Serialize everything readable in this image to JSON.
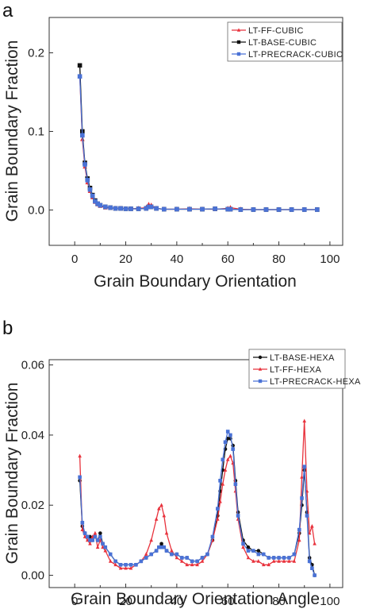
{
  "chart_data": [
    {
      "panel_label": "a",
      "type": "line",
      "xlabel": "Grain Boundary Orientation",
      "ylabel": "Grain Boundary Fraction",
      "xlim": [
        -10,
        105
      ],
      "ylim": [
        -0.045,
        0.245
      ],
      "xticks": [
        0,
        20,
        40,
        60,
        80,
        100
      ],
      "xtick_labels": [
        "0",
        "20",
        "40",
        "60",
        "80",
        "100"
      ],
      "yticks": [
        0.0,
        0.1,
        0.2
      ],
      "ytick_labels": [
        "0.0",
        "0.1",
        "0.2"
      ],
      "grid": false,
      "legend_position": "top-right",
      "series": [
        {
          "name": "LT-FF-CUBIC",
          "color": "#e8323c",
          "marker": "triangle",
          "x": [
            2,
            3,
            4,
            5,
            6,
            7,
            8,
            9,
            10,
            12,
            14,
            16,
            18,
            20,
            22,
            25,
            28,
            29,
            30,
            32,
            35,
            40,
            45,
            50,
            55,
            60,
            61,
            65,
            70,
            75,
            80,
            85,
            90,
            95
          ],
          "y": [
            0.17,
            0.09,
            0.055,
            0.035,
            0.024,
            0.016,
            0.01,
            0.007,
            0.005,
            0.003,
            0.0025,
            0.002,
            0.002,
            0.0015,
            0.0015,
            0.002,
            0.003,
            0.007,
            0.006,
            0.002,
            0.001,
            0.001,
            0.0015,
            0.001,
            0.001,
            0.002,
            0.003,
            0.001,
            0.0005,
            0.0005,
            0.0005,
            0.0005,
            0.0005,
            0.0005
          ]
        },
        {
          "name": "LT-BASE-CUBIC",
          "color": "#111111",
          "marker": "square",
          "x": [
            2,
            3,
            4,
            5,
            6,
            7,
            8,
            9,
            10,
            12,
            14,
            16,
            18,
            20,
            22,
            25,
            28,
            29,
            30,
            32,
            35,
            40,
            45,
            50,
            55,
            60,
            61,
            65,
            70,
            75,
            80,
            85,
            90,
            95
          ],
          "y": [
            0.184,
            0.1,
            0.06,
            0.04,
            0.028,
            0.019,
            0.012,
            0.008,
            0.006,
            0.004,
            0.003,
            0.002,
            0.002,
            0.0015,
            0.0015,
            0.0015,
            0.002,
            0.004,
            0.004,
            0.002,
            0.001,
            0.001,
            0.001,
            0.001,
            0.0015,
            0.001,
            0.001,
            0.0005,
            0.0005,
            0.0005,
            0.0005,
            0.0005,
            0.0005,
            0.0005
          ]
        },
        {
          "name": "LT-PRECRACK-CUBIC",
          "color": "#4a72d6",
          "marker": "square",
          "x": [
            2,
            3,
            4,
            5,
            6,
            7,
            8,
            9,
            10,
            12,
            14,
            16,
            18,
            20,
            22,
            25,
            28,
            29,
            30,
            32,
            35,
            40,
            45,
            50,
            55,
            60,
            61,
            65,
            70,
            75,
            80,
            85,
            90,
            95
          ],
          "y": [
            0.17,
            0.095,
            0.058,
            0.038,
            0.026,
            0.018,
            0.011,
            0.008,
            0.006,
            0.004,
            0.003,
            0.002,
            0.002,
            0.0015,
            0.0015,
            0.0015,
            0.002,
            0.004,
            0.004,
            0.002,
            0.001,
            0.001,
            0.001,
            0.001,
            0.0015,
            0.001,
            0.001,
            0.0005,
            0.0005,
            0.0005,
            0.0005,
            0.0005,
            0.0005,
            0.0005
          ]
        }
      ]
    },
    {
      "panel_label": "b",
      "type": "line",
      "xlabel": "Grain Boundary Orientation Angle",
      "ylabel": "Grain Boundary Fraction",
      "xlim": [
        -10,
        105
      ],
      "ylim": [
        -0.0035,
        0.0615
      ],
      "xticks": [
        0,
        20,
        40,
        60,
        80,
        100
      ],
      "xtick_labels": [
        "0",
        "20",
        "40",
        "60",
        "80",
        "100"
      ],
      "yticks": [
        0.0,
        0.02,
        0.04,
        0.06
      ],
      "ytick_labels": [
        "0.00",
        "0.02",
        "0.04",
        "0.06"
      ],
      "grid": false,
      "legend_position": "top-right",
      "series": [
        {
          "name": "LT-BASE-HEXA",
          "color": "#111111",
          "marker": "circle",
          "x": [
            2,
            3,
            4,
            5,
            6,
            7,
            8,
            9,
            10,
            11,
            12,
            14,
            16,
            18,
            20,
            22,
            24,
            26,
            28,
            30,
            32,
            33,
            34,
            35,
            36,
            38,
            40,
            42,
            44,
            46,
            48,
            50,
            52,
            54,
            56,
            57,
            58,
            59,
            60,
            61,
            62,
            63,
            64,
            66,
            68,
            70,
            72,
            74,
            76,
            78,
            80,
            82,
            84,
            86,
            88,
            89,
            90,
            91,
            92,
            93,
            94
          ],
          "y": [
            0.027,
            0.014,
            0.012,
            0.011,
            0.011,
            0.01,
            0.011,
            0.01,
            0.012,
            0.009,
            0.008,
            0.006,
            0.004,
            0.003,
            0.003,
            0.003,
            0.003,
            0.004,
            0.005,
            0.006,
            0.007,
            0.008,
            0.009,
            0.008,
            0.007,
            0.006,
            0.006,
            0.005,
            0.005,
            0.004,
            0.004,
            0.005,
            0.006,
            0.01,
            0.017,
            0.024,
            0.03,
            0.036,
            0.039,
            0.039,
            0.037,
            0.027,
            0.018,
            0.01,
            0.008,
            0.007,
            0.007,
            0.006,
            0.005,
            0.005,
            0.005,
            0.005,
            0.005,
            0.006,
            0.012,
            0.02,
            0.03,
            0.018,
            0.005,
            0.003,
            0.0
          ]
        },
        {
          "name": "LT-FF-HEXA",
          "color": "#e8323c",
          "marker": "triangle",
          "x": [
            2,
            3,
            4,
            5,
            6,
            7,
            8,
            9,
            10,
            11,
            12,
            14,
            16,
            18,
            20,
            22,
            24,
            26,
            28,
            30,
            32,
            33,
            34,
            35,
            36,
            38,
            40,
            42,
            44,
            46,
            48,
            50,
            52,
            54,
            56,
            57,
            58,
            59,
            60,
            61,
            62,
            63,
            64,
            66,
            68,
            70,
            72,
            74,
            76,
            78,
            80,
            82,
            84,
            86,
            88,
            89,
            90,
            91,
            92,
            93,
            94
          ],
          "y": [
            0.034,
            0.013,
            0.011,
            0.01,
            0.009,
            0.011,
            0.012,
            0.008,
            0.01,
            0.008,
            0.007,
            0.004,
            0.003,
            0.002,
            0.002,
            0.002,
            0.003,
            0.004,
            0.006,
            0.01,
            0.016,
            0.019,
            0.02,
            0.017,
            0.012,
            0.007,
            0.005,
            0.004,
            0.003,
            0.003,
            0.003,
            0.004,
            0.006,
            0.01,
            0.016,
            0.021,
            0.026,
            0.03,
            0.033,
            0.034,
            0.032,
            0.024,
            0.016,
            0.008,
            0.005,
            0.004,
            0.004,
            0.003,
            0.003,
            0.004,
            0.004,
            0.004,
            0.004,
            0.004,
            0.01,
            0.028,
            0.044,
            0.024,
            0.012,
            0.014,
            0.009
          ]
        },
        {
          "name": "LT-PRECRACK-HEXA",
          "color": "#4a72d6",
          "marker": "square",
          "x": [
            2,
            3,
            4,
            5,
            6,
            7,
            8,
            9,
            10,
            11,
            12,
            14,
            16,
            18,
            20,
            22,
            24,
            26,
            28,
            30,
            32,
            33,
            34,
            35,
            36,
            38,
            40,
            42,
            44,
            46,
            48,
            50,
            52,
            54,
            56,
            57,
            58,
            59,
            60,
            61,
            62,
            63,
            64,
            66,
            68,
            70,
            72,
            74,
            76,
            78,
            80,
            82,
            84,
            86,
            88,
            89,
            90,
            91,
            92,
            93,
            94
          ],
          "y": [
            0.028,
            0.015,
            0.012,
            0.011,
            0.01,
            0.01,
            0.011,
            0.01,
            0.011,
            0.009,
            0.008,
            0.006,
            0.004,
            0.003,
            0.003,
            0.003,
            0.003,
            0.004,
            0.005,
            0.006,
            0.007,
            0.008,
            0.008,
            0.008,
            0.007,
            0.006,
            0.006,
            0.005,
            0.005,
            0.004,
            0.004,
            0.005,
            0.006,
            0.011,
            0.019,
            0.027,
            0.033,
            0.038,
            0.041,
            0.04,
            0.036,
            0.026,
            0.017,
            0.009,
            0.007,
            0.007,
            0.006,
            0.006,
            0.005,
            0.005,
            0.005,
            0.005,
            0.005,
            0.006,
            0.013,
            0.022,
            0.031,
            0.017,
            0.004,
            0.002,
            0.0
          ]
        }
      ]
    }
  ]
}
